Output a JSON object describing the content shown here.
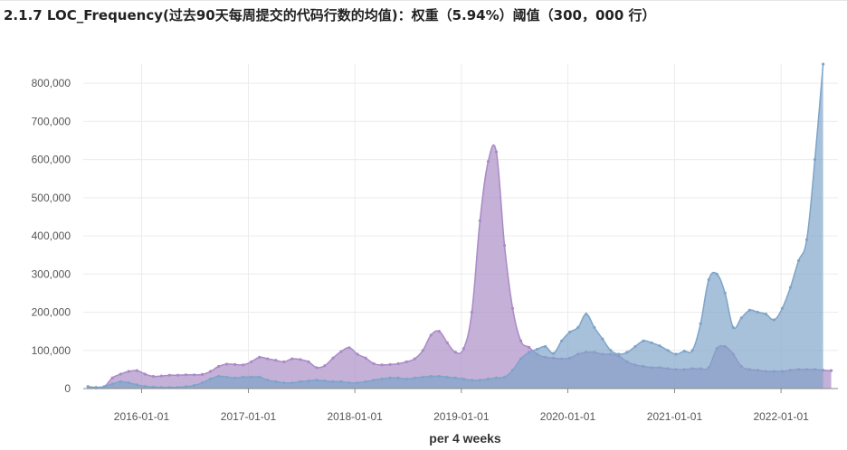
{
  "page": {
    "title": "2.1.7 LOC_Frequency(过去90天每周提交的代码行数的均值)：权重（5.94%）阈值（300，000 行）"
  },
  "chart_data": {
    "type": "area",
    "title": "",
    "xlabel": "per 4 weeks",
    "ylabel": "",
    "ylim": [
      0,
      850000
    ],
    "x_range": [
      "2015-06-15",
      "2022-07-15"
    ],
    "yticks": [
      0,
      100000,
      200000,
      300000,
      400000,
      500000,
      600000,
      700000,
      800000
    ],
    "ytick_labels": [
      "0",
      "100,000",
      "200,000",
      "300,000",
      "400,000",
      "500,000",
      "600,000",
      "700,000",
      "800,000"
    ],
    "xticks": [
      "2016-01-01",
      "2017-01-01",
      "2018-01-01",
      "2019-01-01",
      "2020-01-01",
      "2021-01-01",
      "2022-01-01"
    ],
    "grid": true,
    "colors": {
      "blue": "#7ea4c8",
      "purple": "#a98bc6"
    },
    "series": [
      {
        "color": "purple",
        "points": [
          [
            "2015-07-01",
            5000
          ],
          [
            "2015-07-29",
            2000
          ],
          [
            "2015-08-26",
            5000
          ],
          [
            "2015-09-23",
            28000
          ],
          [
            "2015-10-21",
            38000
          ],
          [
            "2015-11-18",
            45000
          ],
          [
            "2015-12-16",
            47000
          ],
          [
            "2016-01-13",
            38000
          ],
          [
            "2016-02-10",
            32000
          ],
          [
            "2016-03-09",
            33000
          ],
          [
            "2016-04-06",
            35000
          ],
          [
            "2016-05-04",
            35000
          ],
          [
            "2016-06-01",
            36000
          ],
          [
            "2016-06-29",
            36000
          ],
          [
            "2016-07-27",
            37000
          ],
          [
            "2016-08-24",
            45000
          ],
          [
            "2016-09-21",
            58000
          ],
          [
            "2016-10-19",
            64000
          ],
          [
            "2016-11-16",
            63000
          ],
          [
            "2016-12-14",
            62000
          ],
          [
            "2017-01-11",
            70000
          ],
          [
            "2017-02-08",
            82000
          ],
          [
            "2017-03-08",
            78000
          ],
          [
            "2017-04-05",
            74000
          ],
          [
            "2017-05-03",
            70000
          ],
          [
            "2017-05-31",
            78000
          ],
          [
            "2017-06-28",
            76000
          ],
          [
            "2017-07-26",
            70000
          ],
          [
            "2017-08-23",
            55000
          ],
          [
            "2017-09-20",
            60000
          ],
          [
            "2017-10-18",
            80000
          ],
          [
            "2017-11-15",
            97000
          ],
          [
            "2017-12-13",
            107000
          ],
          [
            "2018-01-10",
            90000
          ],
          [
            "2018-02-07",
            80000
          ],
          [
            "2018-03-07",
            65000
          ],
          [
            "2018-04-04",
            62000
          ],
          [
            "2018-05-02",
            63000
          ],
          [
            "2018-05-30",
            65000
          ],
          [
            "2018-06-27",
            70000
          ],
          [
            "2018-07-25",
            78000
          ],
          [
            "2018-08-22",
            100000
          ],
          [
            "2018-09-19",
            140000
          ],
          [
            "2018-10-17",
            150000
          ],
          [
            "2018-11-14",
            120000
          ],
          [
            "2018-12-12",
            95000
          ],
          [
            "2019-01-09",
            105000
          ],
          [
            "2019-02-06",
            200000
          ],
          [
            "2019-03-06",
            440000
          ],
          [
            "2019-04-03",
            595000
          ],
          [
            "2019-05-01",
            620000
          ],
          [
            "2019-05-29",
            375000
          ],
          [
            "2019-06-26",
            210000
          ],
          [
            "2019-07-24",
            125000
          ],
          [
            "2019-08-21",
            108000
          ],
          [
            "2019-09-18",
            90000
          ],
          [
            "2019-10-16",
            82000
          ],
          [
            "2019-11-13",
            80000
          ],
          [
            "2019-12-11",
            78000
          ],
          [
            "2020-01-08",
            80000
          ],
          [
            "2020-02-05",
            90000
          ],
          [
            "2020-03-04",
            95000
          ],
          [
            "2020-04-01",
            95000
          ],
          [
            "2020-04-29",
            90000
          ],
          [
            "2020-05-27",
            90000
          ],
          [
            "2020-06-24",
            85000
          ],
          [
            "2020-07-22",
            70000
          ],
          [
            "2020-08-19",
            62000
          ],
          [
            "2020-09-16",
            58000
          ],
          [
            "2020-10-14",
            55000
          ],
          [
            "2020-11-11",
            55000
          ],
          [
            "2020-12-09",
            52000
          ],
          [
            "2021-01-06",
            50000
          ],
          [
            "2021-02-03",
            50000
          ],
          [
            "2021-03-03",
            52000
          ],
          [
            "2021-03-31",
            52000
          ],
          [
            "2021-04-28",
            55000
          ],
          [
            "2021-05-26",
            105000
          ],
          [
            "2021-06-23",
            110000
          ],
          [
            "2021-07-21",
            90000
          ],
          [
            "2021-08-18",
            58000
          ],
          [
            "2021-09-15",
            50000
          ],
          [
            "2021-10-13",
            48000
          ],
          [
            "2021-11-10",
            45000
          ],
          [
            "2021-12-08",
            45000
          ],
          [
            "2022-01-05",
            45000
          ],
          [
            "2022-02-02",
            48000
          ],
          [
            "2022-03-02",
            50000
          ],
          [
            "2022-03-30",
            50000
          ],
          [
            "2022-04-27",
            50000
          ],
          [
            "2022-05-25",
            48000
          ],
          [
            "2022-06-22",
            47000
          ]
        ]
      },
      {
        "color": "blue",
        "points": [
          [
            "2015-07-01",
            5000
          ],
          [
            "2015-07-29",
            3000
          ],
          [
            "2015-08-26",
            5000
          ],
          [
            "2015-09-23",
            12000
          ],
          [
            "2015-10-21",
            18000
          ],
          [
            "2015-11-18",
            15000
          ],
          [
            "2015-12-16",
            10000
          ],
          [
            "2016-01-13",
            6000
          ],
          [
            "2016-02-10",
            4000
          ],
          [
            "2016-03-09",
            3000
          ],
          [
            "2016-04-06",
            3000
          ],
          [
            "2016-05-04",
            3000
          ],
          [
            "2016-06-01",
            5000
          ],
          [
            "2016-06-29",
            8000
          ],
          [
            "2016-07-27",
            15000
          ],
          [
            "2016-08-24",
            25000
          ],
          [
            "2016-09-21",
            32000
          ],
          [
            "2016-10-19",
            30000
          ],
          [
            "2016-11-16",
            28000
          ],
          [
            "2016-12-14",
            30000
          ],
          [
            "2017-01-11",
            30000
          ],
          [
            "2017-02-08",
            30000
          ],
          [
            "2017-03-08",
            22000
          ],
          [
            "2017-04-05",
            18000
          ],
          [
            "2017-05-03",
            15000
          ],
          [
            "2017-05-31",
            15000
          ],
          [
            "2017-06-28",
            18000
          ],
          [
            "2017-07-26",
            20000
          ],
          [
            "2017-08-23",
            22000
          ],
          [
            "2017-09-20",
            20000
          ],
          [
            "2017-10-18",
            18000
          ],
          [
            "2017-11-15",
            18000
          ],
          [
            "2017-12-13",
            15000
          ],
          [
            "2018-01-10",
            15000
          ],
          [
            "2018-02-07",
            18000
          ],
          [
            "2018-03-07",
            22000
          ],
          [
            "2018-04-04",
            25000
          ],
          [
            "2018-05-02",
            28000
          ],
          [
            "2018-05-30",
            28000
          ],
          [
            "2018-06-27",
            25000
          ],
          [
            "2018-07-25",
            28000
          ],
          [
            "2018-08-22",
            30000
          ],
          [
            "2018-09-19",
            32000
          ],
          [
            "2018-10-17",
            32000
          ],
          [
            "2018-11-14",
            30000
          ],
          [
            "2018-12-12",
            28000
          ],
          [
            "2019-01-09",
            25000
          ],
          [
            "2019-02-06",
            22000
          ],
          [
            "2019-03-06",
            22000
          ],
          [
            "2019-04-03",
            25000
          ],
          [
            "2019-05-01",
            28000
          ],
          [
            "2019-05-29",
            30000
          ],
          [
            "2019-06-26",
            48000
          ],
          [
            "2019-07-24",
            78000
          ],
          [
            "2019-08-21",
            95000
          ],
          [
            "2019-09-18",
            103000
          ],
          [
            "2019-10-16",
            110000
          ],
          [
            "2019-11-13",
            92000
          ],
          [
            "2019-12-11",
            125000
          ],
          [
            "2020-01-08",
            148000
          ],
          [
            "2020-02-05",
            160000
          ],
          [
            "2020-03-04",
            195000
          ],
          [
            "2020-04-01",
            160000
          ],
          [
            "2020-04-29",
            130000
          ],
          [
            "2020-05-27",
            100000
          ],
          [
            "2020-06-24",
            90000
          ],
          [
            "2020-07-22",
            95000
          ],
          [
            "2020-08-19",
            110000
          ],
          [
            "2020-09-16",
            125000
          ],
          [
            "2020-10-14",
            120000
          ],
          [
            "2020-11-11",
            112000
          ],
          [
            "2020-12-09",
            100000
          ],
          [
            "2021-01-06",
            90000
          ],
          [
            "2021-02-03",
            98000
          ],
          [
            "2021-03-03",
            100000
          ],
          [
            "2021-03-31",
            170000
          ],
          [
            "2021-04-28",
            285000
          ],
          [
            "2021-05-26",
            300000
          ],
          [
            "2021-06-23",
            250000
          ],
          [
            "2021-07-21",
            160000
          ],
          [
            "2021-08-18",
            185000
          ],
          [
            "2021-09-15",
            205000
          ],
          [
            "2021-10-13",
            200000
          ],
          [
            "2021-11-10",
            195000
          ],
          [
            "2021-12-08",
            180000
          ],
          [
            "2022-01-05",
            210000
          ],
          [
            "2022-02-02",
            265000
          ],
          [
            "2022-03-02",
            335000
          ],
          [
            "2022-03-30",
            390000
          ],
          [
            "2022-04-27",
            600000
          ],
          [
            "2022-05-25",
            850000
          ]
        ]
      }
    ]
  }
}
